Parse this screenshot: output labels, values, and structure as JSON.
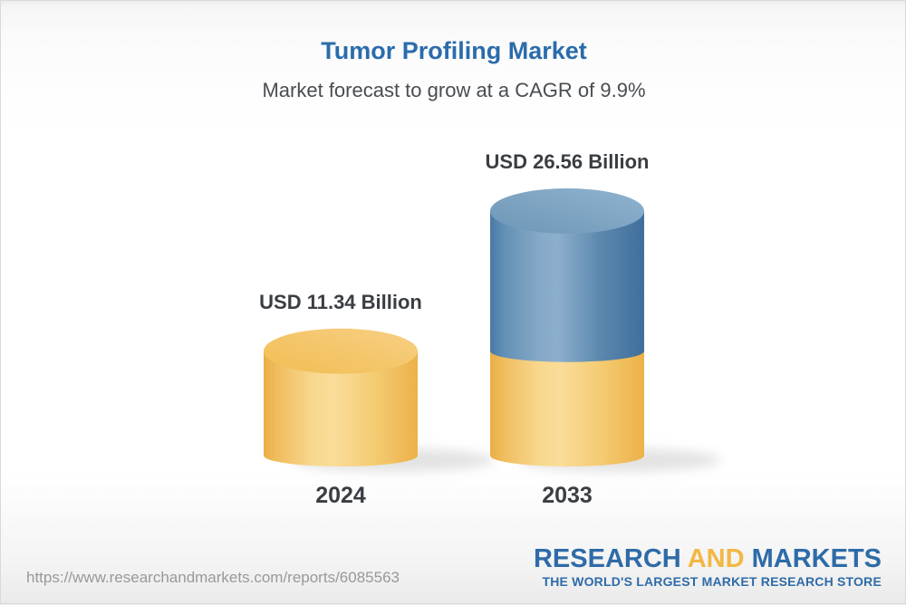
{
  "header": {
    "title": "Tumor Profiling Market",
    "subtitle": "Market forecast to grow at a CAGR of 9.9%"
  },
  "chart_data": {
    "type": "bar",
    "variant": "3d-cylinder",
    "title": "Tumor Profiling Market",
    "subtitle": "Market forecast to grow at a CAGR of 9.9%",
    "cagr_percent": 9.9,
    "unit": "USD Billion",
    "categories": [
      "2024",
      "2033"
    ],
    "values": [
      11.34,
      26.56
    ],
    "bars": [
      {
        "category": "2024",
        "label": "USD 11.34 Billion",
        "total": 11.34,
        "segments": [
          {
            "color_key": "yellow",
            "to": 11.34
          }
        ]
      },
      {
        "category": "2033",
        "label": "USD 26.56 Billion",
        "total": 26.56,
        "segments": [
          {
            "color_key": "yellow",
            "to": 11.34
          },
          {
            "color_key": "blue",
            "to": 26.56
          }
        ]
      }
    ],
    "colors": {
      "yellow_bar": "#f5c868",
      "blue_bar": "#4a79a5",
      "title_blue": "#2a6cab",
      "label_dark": "#3a3e43"
    },
    "legend": "none",
    "grid": "off"
  },
  "footer": {
    "url": "https://www.researchandmarkets.com/reports/6085563",
    "logo": {
      "word1": "RESEARCH",
      "word2": "AND",
      "word3": "MARKETS",
      "tagline": "THE WORLD'S LARGEST MARKET RESEARCH STORE"
    }
  }
}
